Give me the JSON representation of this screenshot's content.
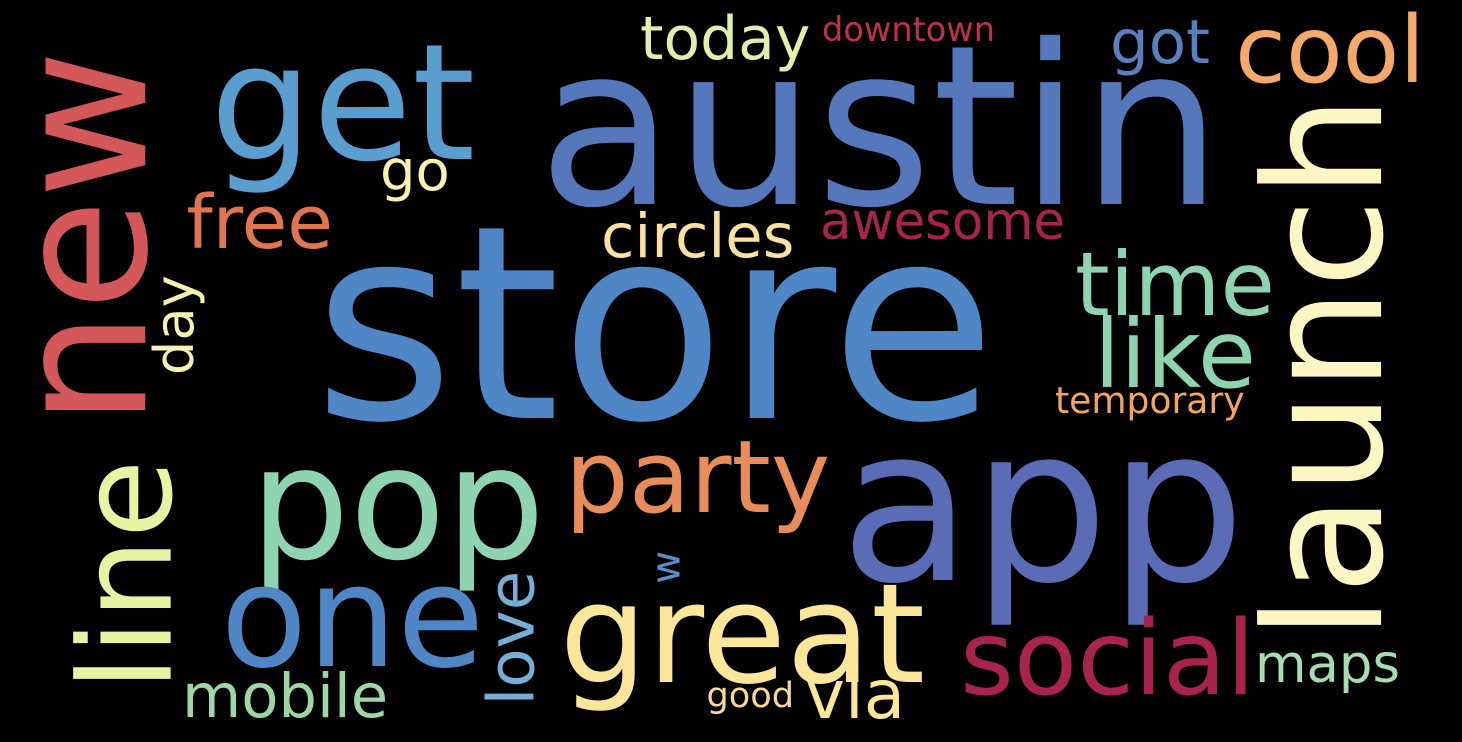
{
  "words": [
    {
      "text": "store",
      "color": "#4f86c6",
      "orientation": "horizontal"
    },
    {
      "text": "app",
      "color": "#5b6cb6",
      "orientation": "horizontal"
    },
    {
      "text": "austin",
      "color": "#5578bd",
      "orientation": "horizontal"
    },
    {
      "text": "new",
      "color": "#d4585a",
      "orientation": "vertical"
    },
    {
      "text": "launch",
      "color": "#fcf6c3",
      "orientation": "vertical"
    },
    {
      "text": "get",
      "color": "#5a9ed0",
      "orientation": "horizontal"
    },
    {
      "text": "pop",
      "color": "#8fd4b1",
      "orientation": "horizontal"
    },
    {
      "text": "one",
      "color": "#4f86c6",
      "orientation": "horizontal"
    },
    {
      "text": "great",
      "color": "#fbe69a",
      "orientation": "horizontal"
    },
    {
      "text": "line",
      "color": "#e8f4a4",
      "orientation": "vertical"
    },
    {
      "text": "party",
      "color": "#e88c59",
      "orientation": "horizontal"
    },
    {
      "text": "social",
      "color": "#a8234e",
      "orientation": "horizontal"
    },
    {
      "text": "time",
      "color": "#8fd4b1",
      "orientation": "horizontal"
    },
    {
      "text": "like",
      "color": "#8fd4b1",
      "orientation": "horizontal"
    },
    {
      "text": "cool",
      "color": "#f4a96a",
      "orientation": "horizontal"
    },
    {
      "text": "free",
      "color": "#e07651",
      "orientation": "horizontal"
    },
    {
      "text": "awesome",
      "color": "#a8234e",
      "orientation": "horizontal"
    },
    {
      "text": "circles",
      "color": "#fbe2a0",
      "orientation": "horizontal"
    },
    {
      "text": "today",
      "color": "#e2efa8",
      "orientation": "horizontal"
    },
    {
      "text": "got",
      "color": "#5a7fc0",
      "orientation": "horizontal"
    },
    {
      "text": "go",
      "color": "#fcefb0",
      "orientation": "horizontal"
    },
    {
      "text": "day",
      "color": "#f4f2b0",
      "orientation": "vertical"
    },
    {
      "text": "mobile",
      "color": "#9ed7a6",
      "orientation": "horizontal"
    },
    {
      "text": "maps",
      "color": "#a8dcb2",
      "orientation": "horizontal"
    },
    {
      "text": "love",
      "color": "#78aed6",
      "orientation": "vertical"
    },
    {
      "text": "w",
      "color": "#5a8fc6",
      "orientation": "vertical"
    },
    {
      "text": "via",
      "color": "#fbe69a",
      "orientation": "horizontal"
    },
    {
      "text": "good",
      "color": "#fbd79a",
      "orientation": "horizontal"
    },
    {
      "text": "temporary",
      "color": "#f4a65f",
      "orientation": "horizontal"
    },
    {
      "text": "downtown",
      "color": "#c1314d",
      "orientation": "horizontal"
    }
  ]
}
